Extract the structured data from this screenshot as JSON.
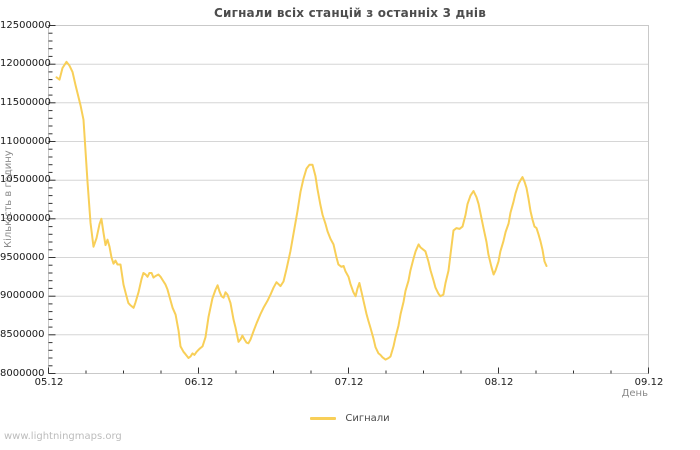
{
  "watermark": "www.lightningmaps.org",
  "chart_data": {
    "type": "line",
    "title": "Сигнали всіх станцій з останніх 3 днів",
    "xlabel": "День",
    "ylabel": "Кількість в годину",
    "legend": [
      "Сигнали"
    ],
    "legend_position": "bottom-center",
    "grid": "horizontal-only",
    "x_ticks": [
      "05.12",
      "06.12",
      "07.12",
      "08.12",
      "09.12"
    ],
    "x_minor_tick_days": 0.25,
    "y_tick_labels": [
      "12500000",
      "12000000",
      "11500000",
      "11000000",
      "10500000",
      "10000000",
      "9500000",
      "9000000",
      "8500000",
      "8000000"
    ],
    "y_minor_tick_step": 100000,
    "ylim": [
      8000000,
      12500000
    ],
    "xlim_days": [
      0,
      4
    ],
    "colors": {
      "line": "#f8cf58",
      "grid": "#d6d6d6",
      "border": "#c9c9c9",
      "tick": "#333333"
    },
    "series": [
      {
        "name": "Сигнали",
        "x_unit": "days_since_05.12",
        "points": [
          [
            0.053,
            11830000
          ],
          [
            0.073,
            11800000
          ],
          [
            0.093,
            11950000
          ],
          [
            0.12,
            12030000
          ],
          [
            0.14,
            11980000
          ],
          [
            0.16,
            11900000
          ],
          [
            0.18,
            11730000
          ],
          [
            0.213,
            11470000
          ],
          [
            0.233,
            11280000
          ],
          [
            0.26,
            10480000
          ],
          [
            0.28,
            9950000
          ],
          [
            0.3,
            9640000
          ],
          [
            0.32,
            9750000
          ],
          [
            0.34,
            9930000
          ],
          [
            0.353,
            10000000
          ],
          [
            0.367,
            9820000
          ],
          [
            0.38,
            9660000
          ],
          [
            0.393,
            9730000
          ],
          [
            0.407,
            9640000
          ],
          [
            0.42,
            9500000
          ],
          [
            0.433,
            9420000
          ],
          [
            0.447,
            9460000
          ],
          [
            0.46,
            9410000
          ],
          [
            0.48,
            9410000
          ],
          [
            0.5,
            9150000
          ],
          [
            0.52,
            9000000
          ],
          [
            0.533,
            8910000
          ],
          [
            0.547,
            8880000
          ],
          [
            0.567,
            8850000
          ],
          [
            0.58,
            8920000
          ],
          [
            0.6,
            9050000
          ],
          [
            0.62,
            9220000
          ],
          [
            0.633,
            9300000
          ],
          [
            0.647,
            9280000
          ],
          [
            0.66,
            9250000
          ],
          [
            0.673,
            9300000
          ],
          [
            0.687,
            9300000
          ],
          [
            0.7,
            9240000
          ],
          [
            0.713,
            9260000
          ],
          [
            0.733,
            9280000
          ],
          [
            0.747,
            9250000
          ],
          [
            0.76,
            9210000
          ],
          [
            0.78,
            9150000
          ],
          [
            0.793,
            9090000
          ],
          [
            0.813,
            8950000
          ],
          [
            0.827,
            8850000
          ],
          [
            0.847,
            8760000
          ],
          [
            0.867,
            8550000
          ],
          [
            0.88,
            8350000
          ],
          [
            0.9,
            8280000
          ],
          [
            0.913,
            8250000
          ],
          [
            0.933,
            8200000
          ],
          [
            0.947,
            8220000
          ],
          [
            0.96,
            8260000
          ],
          [
            0.973,
            8240000
          ],
          [
            0.987,
            8280000
          ],
          [
            1.007,
            8320000
          ],
          [
            1.027,
            8350000
          ],
          [
            1.047,
            8470000
          ],
          [
            1.067,
            8730000
          ],
          [
            1.093,
            8970000
          ],
          [
            1.113,
            9080000
          ],
          [
            1.127,
            9140000
          ],
          [
            1.14,
            9060000
          ],
          [
            1.153,
            9000000
          ],
          [
            1.167,
            8980000
          ],
          [
            1.18,
            9050000
          ],
          [
            1.193,
            9020000
          ],
          [
            1.213,
            8910000
          ],
          [
            1.233,
            8700000
          ],
          [
            1.247,
            8590000
          ],
          [
            1.267,
            8410000
          ],
          [
            1.28,
            8440000
          ],
          [
            1.293,
            8490000
          ],
          [
            1.307,
            8440000
          ],
          [
            1.32,
            8400000
          ],
          [
            1.333,
            8390000
          ],
          [
            1.347,
            8440000
          ],
          [
            1.367,
            8550000
          ],
          [
            1.387,
            8650000
          ],
          [
            1.413,
            8770000
          ],
          [
            1.433,
            8850000
          ],
          [
            1.46,
            8940000
          ],
          [
            1.48,
            9020000
          ],
          [
            1.5,
            9110000
          ],
          [
            1.52,
            9180000
          ],
          [
            1.547,
            9130000
          ],
          [
            1.567,
            9190000
          ],
          [
            1.587,
            9350000
          ],
          [
            1.613,
            9580000
          ],
          [
            1.633,
            9800000
          ],
          [
            1.66,
            10100000
          ],
          [
            1.68,
            10350000
          ],
          [
            1.7,
            10520000
          ],
          [
            1.72,
            10650000
          ],
          [
            1.74,
            10700000
          ],
          [
            1.76,
            10700000
          ],
          [
            1.78,
            10550000
          ],
          [
            1.793,
            10390000
          ],
          [
            1.813,
            10180000
          ],
          [
            1.827,
            10050000
          ],
          [
            1.847,
            9930000
          ],
          [
            1.86,
            9840000
          ],
          [
            1.88,
            9740000
          ],
          [
            1.9,
            9670000
          ],
          [
            1.92,
            9500000
          ],
          [
            1.933,
            9410000
          ],
          [
            1.953,
            9380000
          ],
          [
            1.967,
            9390000
          ],
          [
            1.98,
            9320000
          ],
          [
            2.0,
            9250000
          ],
          [
            2.013,
            9160000
          ],
          [
            2.033,
            9050000
          ],
          [
            2.047,
            9000000
          ],
          [
            2.06,
            9100000
          ],
          [
            2.073,
            9170000
          ],
          [
            2.087,
            9050000
          ],
          [
            2.1,
            8940000
          ],
          [
            2.12,
            8770000
          ],
          [
            2.133,
            8680000
          ],
          [
            2.147,
            8590000
          ],
          [
            2.167,
            8450000
          ],
          [
            2.18,
            8340000
          ],
          [
            2.2,
            8260000
          ],
          [
            2.213,
            8240000
          ],
          [
            2.227,
            8210000
          ],
          [
            2.247,
            8180000
          ],
          [
            2.267,
            8200000
          ],
          [
            2.28,
            8220000
          ],
          [
            2.3,
            8350000
          ],
          [
            2.313,
            8470000
          ],
          [
            2.333,
            8620000
          ],
          [
            2.347,
            8770000
          ],
          [
            2.367,
            8930000
          ],
          [
            2.38,
            9070000
          ],
          [
            2.4,
            9200000
          ],
          [
            2.413,
            9330000
          ],
          [
            2.433,
            9480000
          ],
          [
            2.447,
            9580000
          ],
          [
            2.467,
            9670000
          ],
          [
            2.48,
            9630000
          ],
          [
            2.5,
            9600000
          ],
          [
            2.513,
            9580000
          ],
          [
            2.533,
            9450000
          ],
          [
            2.547,
            9330000
          ],
          [
            2.567,
            9200000
          ],
          [
            2.58,
            9110000
          ],
          [
            2.6,
            9030000
          ],
          [
            2.613,
            9000000
          ],
          [
            2.633,
            9020000
          ],
          [
            2.647,
            9170000
          ],
          [
            2.667,
            9330000
          ],
          [
            2.68,
            9540000
          ],
          [
            2.7,
            9850000
          ],
          [
            2.72,
            9880000
          ],
          [
            2.74,
            9870000
          ],
          [
            2.76,
            9900000
          ],
          [
            2.78,
            10050000
          ],
          [
            2.793,
            10190000
          ],
          [
            2.813,
            10300000
          ],
          [
            2.833,
            10360000
          ],
          [
            2.853,
            10280000
          ],
          [
            2.867,
            10190000
          ],
          [
            2.887,
            10000000
          ],
          [
            2.9,
            9880000
          ],
          [
            2.92,
            9700000
          ],
          [
            2.933,
            9540000
          ],
          [
            2.953,
            9380000
          ],
          [
            2.967,
            9280000
          ],
          [
            2.98,
            9330000
          ],
          [
            3.0,
            9450000
          ],
          [
            3.013,
            9580000
          ],
          [
            3.033,
            9710000
          ],
          [
            3.047,
            9830000
          ],
          [
            3.067,
            9940000
          ],
          [
            3.08,
            10080000
          ],
          [
            3.1,
            10220000
          ],
          [
            3.113,
            10330000
          ],
          [
            3.133,
            10450000
          ],
          [
            3.147,
            10500000
          ],
          [
            3.16,
            10540000
          ],
          [
            3.173,
            10480000
          ],
          [
            3.187,
            10400000
          ],
          [
            3.2,
            10260000
          ],
          [
            3.213,
            10100000
          ],
          [
            3.227,
            9990000
          ],
          [
            3.24,
            9900000
          ],
          [
            3.253,
            9880000
          ],
          [
            3.267,
            9800000
          ],
          [
            3.28,
            9710000
          ],
          [
            3.293,
            9600000
          ],
          [
            3.307,
            9450000
          ],
          [
            3.32,
            9390000
          ]
        ]
      }
    ]
  }
}
